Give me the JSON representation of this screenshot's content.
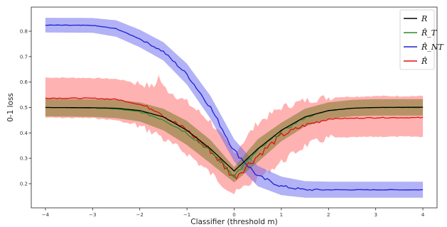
{
  "chart_data": {
    "type": "line",
    "xlabel": "Classifier (threshold m)",
    "ylabel": "0-1 loss",
    "xlim": [
      -4.3,
      4.3
    ],
    "ylim": [
      0.105,
      0.895
    ],
    "x_ticks": [
      -4,
      -3,
      -2,
      -1,
      0,
      1,
      2,
      3,
      4
    ],
    "x_tick_labels": [
      "−4",
      "−3",
      "−2",
      "−1",
      "0",
      "1",
      "2",
      "3",
      "4"
    ],
    "y_ticks": [
      0.2,
      0.3,
      0.4,
      0.5,
      0.6,
      0.7,
      0.8
    ],
    "y_tick_labels": [
      "0.2",
      "0.3",
      "0.4",
      "0.5",
      "0.6",
      "0.7",
      "0.8"
    ],
    "grid": false,
    "legend_position": "top-right",
    "series": [
      {
        "name": "R",
        "color": "#000000",
        "band": false,
        "x": [
          -4,
          -3,
          -2.5,
          -2,
          -1.5,
          -1,
          -0.5,
          0,
          0.5,
          1,
          1.5,
          2,
          2.5,
          3,
          4
        ],
        "y": [
          0.5,
          0.499,
          0.497,
          0.488,
          0.463,
          0.41,
          0.337,
          0.25,
          0.337,
          0.41,
          0.463,
          0.488,
          0.497,
          0.5,
          0.501
        ]
      },
      {
        "name": "R̂_T",
        "color": "#2a8a2a",
        "band_color": "#7a7a2a",
        "x": [
          -4,
          -3,
          -2.5,
          -2,
          -1.5,
          -1,
          -0.5,
          0,
          0.5,
          1,
          1.5,
          2,
          2.5,
          3,
          4
        ],
        "y": [
          0.5,
          0.498,
          0.494,
          0.483,
          0.452,
          0.4,
          0.327,
          0.232,
          0.33,
          0.405,
          0.46,
          0.487,
          0.497,
          0.5,
          0.5
        ],
        "lower": [
          0.465,
          0.463,
          0.458,
          0.445,
          0.41,
          0.352,
          0.28,
          0.205,
          0.285,
          0.367,
          0.425,
          0.455,
          0.465,
          0.468,
          0.468
        ],
        "upper": [
          0.534,
          0.532,
          0.53,
          0.52,
          0.495,
          0.447,
          0.372,
          0.265,
          0.375,
          0.44,
          0.495,
          0.52,
          0.53,
          0.533,
          0.533
        ]
      },
      {
        "name": "R̂_NT",
        "color": "#1f1fd6",
        "band_color": "#6666ee",
        "x": [
          -4,
          -3,
          -2.5,
          -2,
          -1.5,
          -1,
          -0.5,
          0,
          0.5,
          1,
          1.5,
          2,
          2.5,
          3,
          4
        ],
        "y": [
          0.824,
          0.823,
          0.81,
          0.77,
          0.72,
          0.63,
          0.5,
          0.33,
          0.23,
          0.19,
          0.176,
          0.176,
          0.176,
          0.176,
          0.176
        ],
        "lower": [
          0.795,
          0.794,
          0.778,
          0.737,
          0.685,
          0.59,
          0.455,
          0.288,
          0.19,
          0.155,
          0.145,
          0.145,
          0.145,
          0.145,
          0.145
        ],
        "upper": [
          0.853,
          0.852,
          0.843,
          0.806,
          0.757,
          0.672,
          0.545,
          0.375,
          0.27,
          0.228,
          0.21,
          0.208,
          0.208,
          0.208,
          0.208
        ]
      },
      {
        "name": "R̂",
        "color": "#e01010",
        "band_color": "#ff6666",
        "x": [
          -4,
          -3,
          -2.5,
          -2,
          -1.7,
          -1.6,
          -1.5,
          -1,
          -0.5,
          0,
          0.5,
          1,
          1.5,
          2,
          3,
          4
        ],
        "y": [
          0.537,
          0.536,
          0.532,
          0.512,
          0.492,
          0.485,
          0.468,
          0.41,
          0.33,
          0.225,
          0.31,
          0.39,
          0.43,
          0.455,
          0.46,
          0.46
        ],
        "lower": [
          0.46,
          0.458,
          0.45,
          0.425,
          0.4,
          0.395,
          0.375,
          0.32,
          0.24,
          0.16,
          0.22,
          0.285,
          0.35,
          0.38,
          0.385,
          0.385
        ],
        "upper": [
          0.618,
          0.616,
          0.612,
          0.595,
          0.58,
          0.625,
          0.58,
          0.52,
          0.445,
          0.32,
          0.44,
          0.5,
          0.527,
          0.54,
          0.545,
          0.545
        ]
      }
    ]
  }
}
